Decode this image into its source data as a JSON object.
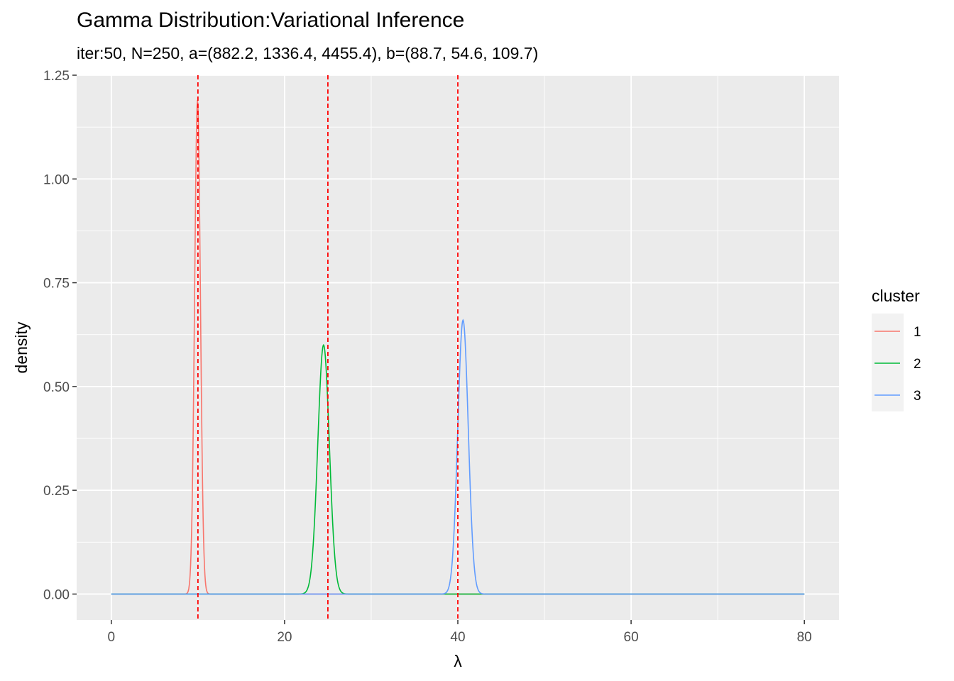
{
  "chart_data": {
    "type": "line",
    "title": "Gamma Distribution:Variational Inference",
    "subtitle": "iter:50, N=250, a=(882.2, 1336.4, 4455.4), b=(88.7, 54.6, 109.7)",
    "xlabel": "λ",
    "ylabel": "density",
    "xlim": [
      -4,
      84
    ],
    "ylim": [
      -0.0625,
      1.25
    ],
    "xticks": [
      0,
      20,
      40,
      60,
      80
    ],
    "xtick_labels": [
      "0",
      "20",
      "40",
      "60",
      "80"
    ],
    "yticks": [
      0,
      0.25,
      0.5,
      0.75,
      1.0,
      1.25
    ],
    "ytick_labels": [
      "0.00",
      "0.25",
      "0.50",
      "0.75",
      "1.00",
      "1.25"
    ],
    "x_range": [
      0,
      80
    ],
    "grid": true,
    "legend": {
      "title": "cluster",
      "position": "right"
    },
    "series": [
      {
        "name": "1",
        "shape": 882.2,
        "rate": 88.7,
        "peak_x": 9.95,
        "peak_density": 1.19,
        "color": "#F8766D"
      },
      {
        "name": "2",
        "shape": 1336.4,
        "rate": 54.6,
        "peak_x": 24.5,
        "peak_density": 0.6,
        "color": "#00BA38"
      },
      {
        "name": "3",
        "shape": 4455.4,
        "rate": 109.7,
        "peak_x": 40.6,
        "peak_density": 0.66,
        "color": "#619CFF"
      }
    ],
    "reference_lines": {
      "x": [
        10,
        25,
        40
      ],
      "color": "#FF0000",
      "style": "dashed"
    }
  },
  "colors": {
    "panel_background": "#EBEBEB",
    "grid_line": "#FFFFFF",
    "tick_label": "#4D4D4D"
  }
}
